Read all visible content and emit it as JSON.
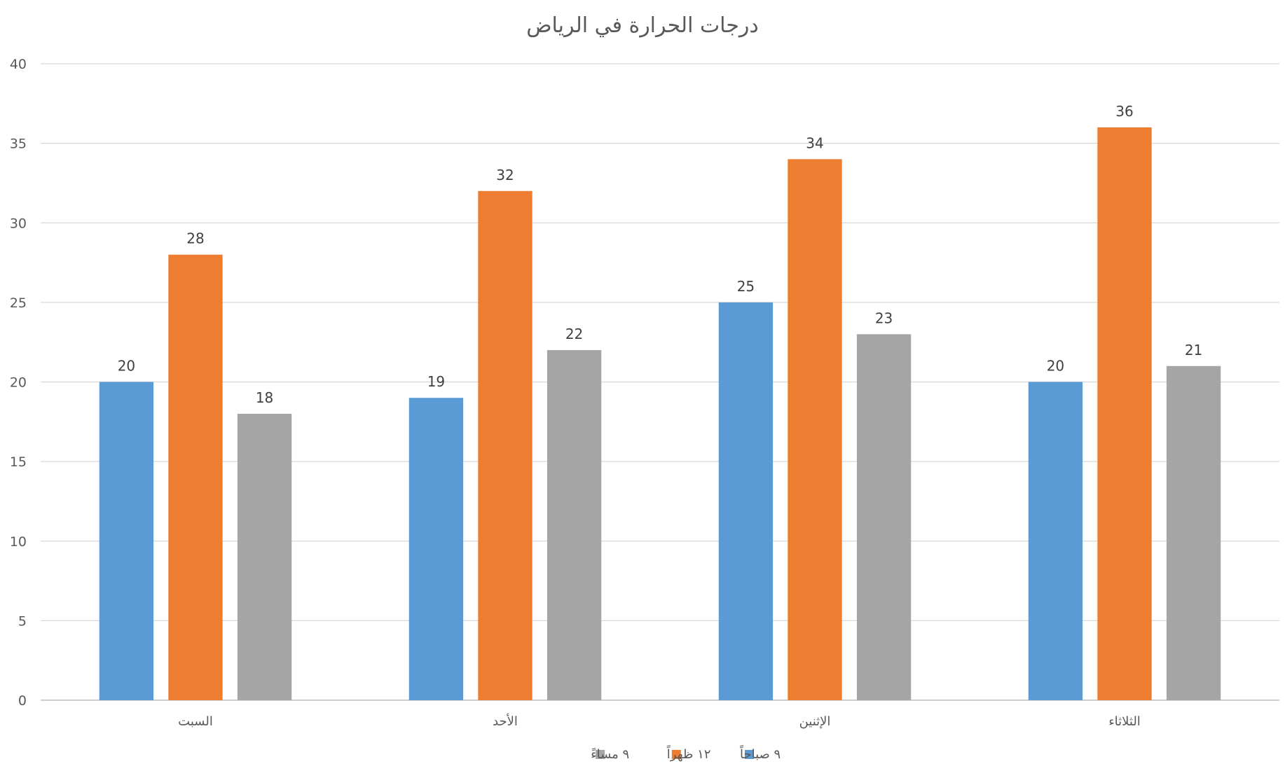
{
  "chart_data": {
    "type": "bar",
    "title": "درجات الحرارة في الرياض",
    "xlabel": "",
    "ylabel": "",
    "categories": [
      "السبت",
      "الأحد",
      "الإثنين",
      "الثلاثاء"
    ],
    "series": [
      {
        "name": "٩ صباحاً",
        "color": "#5b9bd5",
        "values": [
          20,
          19,
          25,
          20
        ]
      },
      {
        "name": "١٢ ظهراً",
        "color": "#ed7d31",
        "values": [
          28,
          32,
          34,
          36
        ]
      },
      {
        "name": "٩ مساءً",
        "color": "#a5a5a5",
        "values": [
          18,
          22,
          23,
          21
        ]
      }
    ],
    "ylim": [
      0,
      40
    ],
    "yticks": [
      0,
      5,
      10,
      15,
      20,
      25,
      30,
      35,
      40
    ],
    "grid": true,
    "legend_position": "bottom",
    "data_labels": true
  }
}
